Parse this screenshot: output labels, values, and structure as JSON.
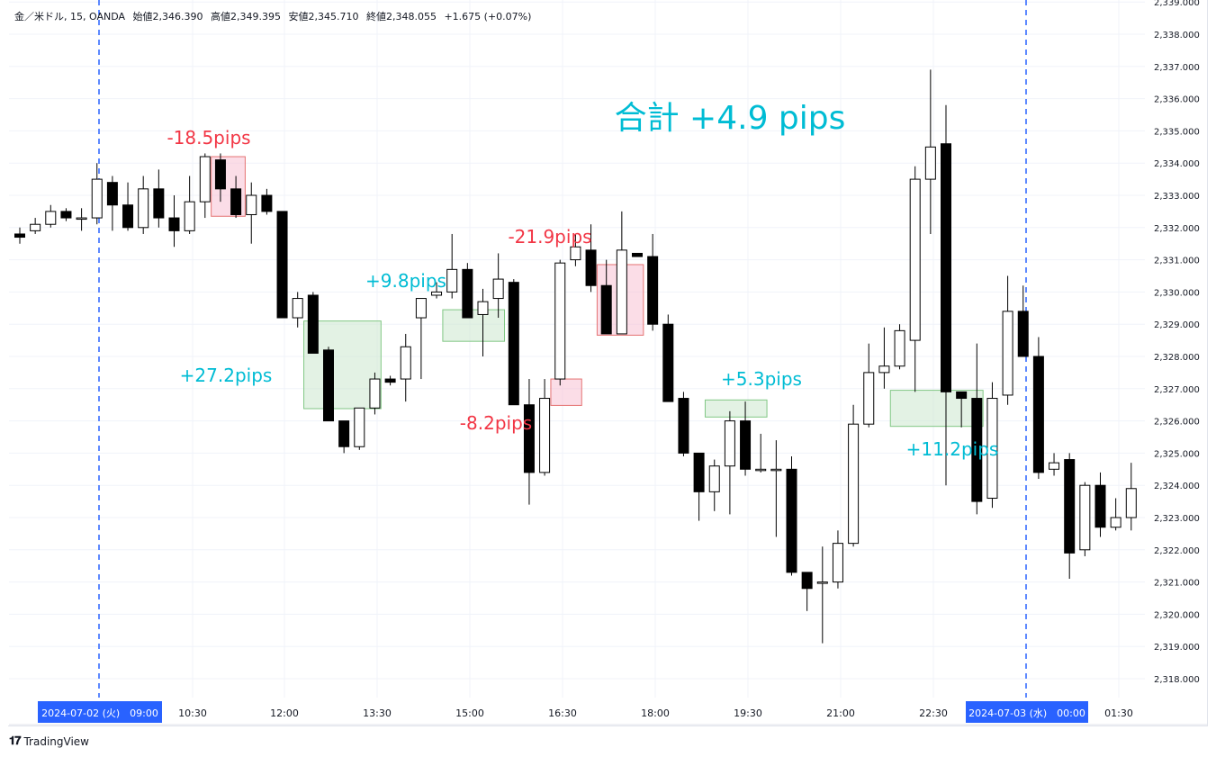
{
  "legend": {
    "symbol": "金／米ドル, 15, OANDA",
    "open": "始値2,346.390",
    "high": "高値2,349.395",
    "low": "安値2,345.710",
    "close": "終値2,348.055",
    "change": "+1.675 (+0.07%)"
  },
  "branding": {
    "logo_text": "TradingView"
  },
  "chart_data": {
    "type": "candlestick",
    "title": "",
    "ylim": [
      2318.0,
      2339.0
    ],
    "y_ticks": [
      "2,318.000",
      "2,319.000",
      "2,320.000",
      "2,321.000",
      "2,322.000",
      "2,323.000",
      "2,324.000",
      "2,325.000",
      "2,326.000",
      "2,327.000",
      "2,328.000",
      "2,329.000",
      "2,330.000",
      "2,331.000",
      "2,332.000",
      "2,333.000",
      "2,334.000",
      "2,335.000",
      "2,336.000",
      "2,337.000",
      "2,338.000",
      "2,339.000"
    ],
    "x_ticks": [
      "10:30",
      "12:00",
      "13:30",
      "15:00",
      "16:30",
      "18:00",
      "19:30",
      "21:00",
      "22:30",
      "01:30"
    ],
    "x_highlight_labels": [
      "2024-07-02 (火)　09:00",
      "2024-07-03 (水)　00:00"
    ],
    "total_label": "合計 +4.9 pips",
    "candles": [
      {
        "o": 2331.8,
        "h": 2332.0,
        "l": 2331.5,
        "c": 2331.7
      },
      {
        "o": 2331.9,
        "h": 2332.3,
        "l": 2331.8,
        "c": 2332.1
      },
      {
        "o": 2332.1,
        "h": 2332.7,
        "l": 2332.0,
        "c": 2332.5
      },
      {
        "o": 2332.5,
        "h": 2332.6,
        "l": 2332.2,
        "c": 2332.3
      },
      {
        "o": 2332.3,
        "h": 2332.6,
        "l": 2331.9,
        "c": 2332.3
      },
      {
        "o": 2332.3,
        "h": 2334.0,
        "l": 2332.1,
        "c": 2333.5
      },
      {
        "o": 2333.4,
        "h": 2333.6,
        "l": 2331.9,
        "c": 2332.7
      },
      {
        "o": 2332.7,
        "h": 2333.4,
        "l": 2331.9,
        "c": 2332.0
      },
      {
        "o": 2332.0,
        "h": 2333.6,
        "l": 2331.8,
        "c": 2333.2
      },
      {
        "o": 2333.2,
        "h": 2333.8,
        "l": 2332.0,
        "c": 2332.3
      },
      {
        "o": 2332.3,
        "h": 2333.0,
        "l": 2331.4,
        "c": 2331.9
      },
      {
        "o": 2331.9,
        "h": 2333.6,
        "l": 2331.8,
        "c": 2332.8
      },
      {
        "o": 2332.8,
        "h": 2334.3,
        "l": 2332.3,
        "c": 2334.2
      },
      {
        "o": 2334.1,
        "h": 2334.3,
        "l": 2332.8,
        "c": 2333.2
      },
      {
        "o": 2333.2,
        "h": 2333.6,
        "l": 2332.3,
        "c": 2332.4
      },
      {
        "o": 2332.4,
        "h": 2333.4,
        "l": 2331.5,
        "c": 2333.0
      },
      {
        "o": 2333.0,
        "h": 2333.2,
        "l": 2332.4,
        "c": 2332.5
      },
      {
        "o": 2332.5,
        "h": 2332.5,
        "l": 2329.2,
        "c": 2329.2
      },
      {
        "o": 2329.2,
        "h": 2330.0,
        "l": 2328.9,
        "c": 2329.8
      },
      {
        "o": 2329.9,
        "h": 2330.0,
        "l": 2328.1,
        "c": 2328.1
      },
      {
        "o": 2328.2,
        "h": 2328.3,
        "l": 2326.0,
        "c": 2326.0
      },
      {
        "o": 2326.0,
        "h": 2326.0,
        "l": 2325.0,
        "c": 2325.2
      },
      {
        "o": 2325.2,
        "h": 2326.4,
        "l": 2325.1,
        "c": 2326.4
      },
      {
        "o": 2326.4,
        "h": 2327.5,
        "l": 2326.2,
        "c": 2327.3
      },
      {
        "o": 2327.3,
        "h": 2327.4,
        "l": 2327.1,
        "c": 2327.2
      },
      {
        "o": 2327.3,
        "h": 2328.7,
        "l": 2326.6,
        "c": 2328.3
      },
      {
        "o": 2329.2,
        "h": 2329.8,
        "l": 2327.3,
        "c": 2329.8
      },
      {
        "o": 2329.9,
        "h": 2330.3,
        "l": 2329.8,
        "c": 2330.0
      },
      {
        "o": 2330.0,
        "h": 2331.8,
        "l": 2329.8,
        "c": 2330.7
      },
      {
        "o": 2330.7,
        "h": 2330.9,
        "l": 2329.2,
        "c": 2329.2
      },
      {
        "o": 2329.3,
        "h": 2330.1,
        "l": 2328.0,
        "c": 2329.7
      },
      {
        "o": 2329.8,
        "h": 2331.2,
        "l": 2329.2,
        "c": 2330.4
      },
      {
        "o": 2330.3,
        "h": 2330.4,
        "l": 2326.5,
        "c": 2326.5
      },
      {
        "o": 2326.5,
        "h": 2327.3,
        "l": 2323.4,
        "c": 2324.4
      },
      {
        "o": 2324.4,
        "h": 2327.3,
        "l": 2324.3,
        "c": 2326.7
      },
      {
        "o": 2327.3,
        "h": 2331.0,
        "l": 2327.1,
        "c": 2330.9
      },
      {
        "o": 2331.0,
        "h": 2331.8,
        "l": 2330.8,
        "c": 2331.4
      },
      {
        "o": 2331.3,
        "h": 2332.1,
        "l": 2330.0,
        "c": 2330.2
      },
      {
        "o": 2330.2,
        "h": 2331.0,
        "l": 2328.7,
        "c": 2328.7
      },
      {
        "o": 2328.7,
        "h": 2332.5,
        "l": 2328.7,
        "c": 2331.3
      },
      {
        "o": 2331.2,
        "h": 2331.2,
        "l": 2331.1,
        "c": 2331.1
      },
      {
        "o": 2331.1,
        "h": 2331.8,
        "l": 2328.8,
        "c": 2329.0
      },
      {
        "o": 2329.0,
        "h": 2329.3,
        "l": 2326.6,
        "c": 2326.6
      },
      {
        "o": 2326.7,
        "h": 2326.9,
        "l": 2324.9,
        "c": 2325.0
      },
      {
        "o": 2325.0,
        "h": 2325.0,
        "l": 2322.9,
        "c": 2323.8
      },
      {
        "o": 2323.8,
        "h": 2324.8,
        "l": 2323.2,
        "c": 2324.6
      },
      {
        "o": 2324.6,
        "h": 2326.3,
        "l": 2323.1,
        "c": 2326.0
      },
      {
        "o": 2326.0,
        "h": 2326.6,
        "l": 2324.3,
        "c": 2324.5
      },
      {
        "o": 2324.5,
        "h": 2325.6,
        "l": 2324.4,
        "c": 2324.5
      },
      {
        "o": 2324.5,
        "h": 2325.4,
        "l": 2322.4,
        "c": 2324.5
      },
      {
        "o": 2324.5,
        "h": 2324.9,
        "l": 2321.2,
        "c": 2321.3
      },
      {
        "o": 2321.3,
        "h": 2321.3,
        "l": 2320.1,
        "c": 2320.8
      },
      {
        "o": 2321.0,
        "h": 2322.1,
        "l": 2319.1,
        "c": 2321.0
      },
      {
        "o": 2321.0,
        "h": 2322.6,
        "l": 2320.8,
        "c": 2322.2
      },
      {
        "o": 2322.2,
        "h": 2326.5,
        "l": 2322.1,
        "c": 2325.9
      },
      {
        "o": 2325.9,
        "h": 2328.4,
        "l": 2325.8,
        "c": 2327.5
      },
      {
        "o": 2327.5,
        "h": 2328.9,
        "l": 2327.0,
        "c": 2327.7
      },
      {
        "o": 2327.7,
        "h": 2329.0,
        "l": 2327.6,
        "c": 2328.8
      },
      {
        "o": 2328.5,
        "h": 2333.9,
        "l": 2326.9,
        "c": 2333.5
      },
      {
        "o": 2333.5,
        "h": 2336.9,
        "l": 2331.8,
        "c": 2334.5
      },
      {
        "o": 2334.6,
        "h": 2335.8,
        "l": 2324.0,
        "c": 2326.9
      },
      {
        "o": 2326.9,
        "h": 2326.9,
        "l": 2325.8,
        "c": 2326.7
      },
      {
        "o": 2326.7,
        "h": 2328.4,
        "l": 2323.1,
        "c": 2323.5
      },
      {
        "o": 2323.6,
        "h": 2327.2,
        "l": 2323.3,
        "c": 2326.7
      },
      {
        "o": 2326.8,
        "h": 2330.5,
        "l": 2326.5,
        "c": 2329.4
      },
      {
        "o": 2329.4,
        "h": 2330.2,
        "l": 2328.0,
        "c": 2328.0
      },
      {
        "o": 2328.0,
        "h": 2328.6,
        "l": 2324.2,
        "c": 2324.4
      },
      {
        "o": 2324.5,
        "h": 2325.0,
        "l": 2324.3,
        "c": 2324.7
      },
      {
        "o": 2324.8,
        "h": 2325.0,
        "l": 2321.1,
        "c": 2321.9
      },
      {
        "o": 2322.0,
        "h": 2324.1,
        "l": 2321.8,
        "c": 2324.0
      },
      {
        "o": 2324.0,
        "h": 2324.4,
        "l": 2322.4,
        "c": 2322.7
      },
      {
        "o": 2322.7,
        "h": 2323.6,
        "l": 2322.6,
        "c": 2323.0
      },
      {
        "o": 2323.0,
        "h": 2324.7,
        "l": 2322.6,
        "c": 2323.9
      }
    ],
    "trades": [
      {
        "label": "-18.5pips",
        "result": "loss",
        "from_index": 12.4,
        "to_index": 14.6,
        "price_top": 2334.2,
        "price_bottom": 2332.35
      },
      {
        "label": "+27.2pips",
        "result": "win",
        "from_index": 18.4,
        "to_index": 23.4,
        "price_top": 2329.1,
        "price_bottom": 2326.38
      },
      {
        "label": "+9.8pips",
        "result": "win",
        "from_index": 27.4,
        "to_index": 31.4,
        "price_top": 2329.45,
        "price_bottom": 2328.47
      },
      {
        "label": "-21.9pips",
        "result": "loss",
        "from_index": 37.4,
        "to_index": 40.4,
        "price_top": 2330.85,
        "price_bottom": 2328.66
      },
      {
        "label": "-8.2pips",
        "result": "loss",
        "from_index": 34.4,
        "to_index": 36.4,
        "price_top": 2327.3,
        "price_bottom": 2326.48
      },
      {
        "label": "+5.3pips",
        "result": "win",
        "from_index": 44.4,
        "to_index": 48.4,
        "price_top": 2326.65,
        "price_bottom": 2326.12
      },
      {
        "label": "+11.2pips",
        "result": "win",
        "from_index": 56.4,
        "to_index": 62.4,
        "price_top": 2326.95,
        "price_bottom": 2325.83
      }
    ]
  },
  "colors": {
    "candle_up_fill": "#ffffff",
    "candle_down_fill": "#000000",
    "candle_border": "#000000",
    "grid": "#f0f3fa",
    "session_line": "#2962ff",
    "win_text": "#00bcd4",
    "loss_text": "#f23645",
    "win_box_fill": "#c8e6c9",
    "win_box_stroke": "#81c784",
    "loss_box_fill": "#f8bbd0",
    "loss_box_stroke": "#e57373",
    "axis_label_bg": "#2962ff",
    "axis_text": "#131722"
  }
}
